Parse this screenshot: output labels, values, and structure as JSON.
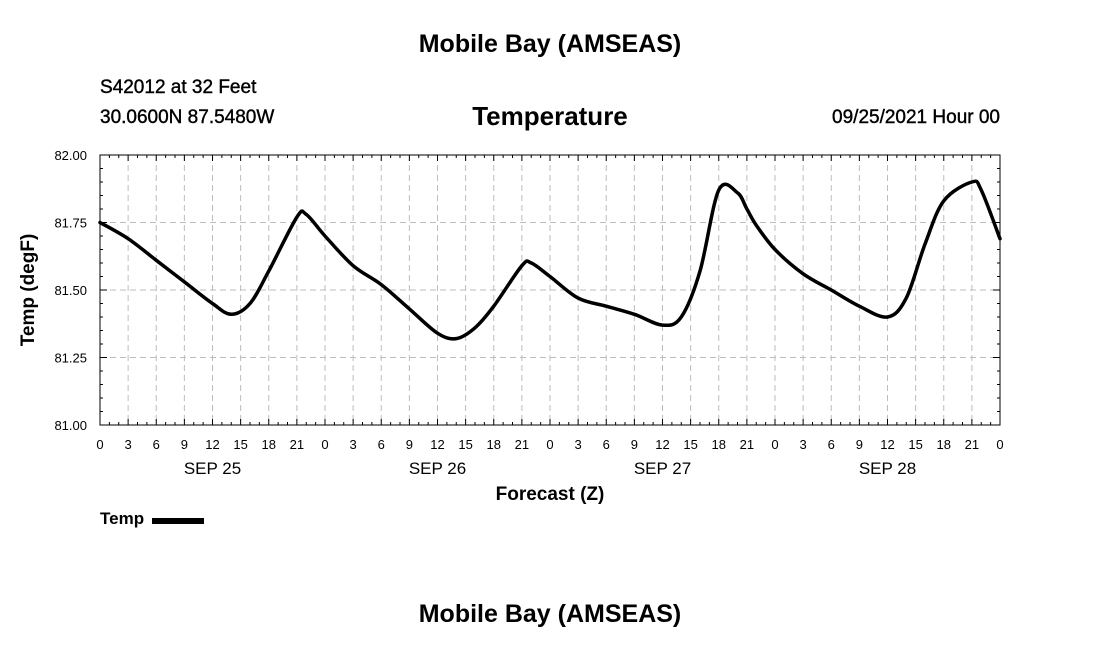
{
  "header": {
    "title": "Mobile Bay (AMSEAS)",
    "station": "S42012 at 32 Feet",
    "coords": "30.0600N  87.5480W",
    "variable": "Temperature",
    "datetime": "09/25/2021 Hour 00"
  },
  "footer": {
    "title": "Mobile Bay (AMSEAS)"
  },
  "legend": {
    "label": "Temp",
    "color": "#000000"
  },
  "chart_data": {
    "type": "line",
    "title": "Temperature",
    "xlabel": "Forecast (Z)",
    "ylabel": "Temp (degF)",
    "ylim": [
      81.0,
      82.0
    ],
    "yticks": [
      "81.00",
      "81.25",
      "81.50",
      "81.75",
      "82.00"
    ],
    "xlim": [
      0,
      96
    ],
    "xtick_hours": [
      0,
      3,
      6,
      9,
      12,
      15,
      18,
      21,
      24,
      27,
      30,
      33,
      36,
      39,
      42,
      45,
      48,
      51,
      54,
      57,
      60,
      63,
      66,
      69,
      72,
      75,
      78,
      81,
      84,
      87,
      90,
      93,
      96
    ],
    "xtick_labels": [
      "0",
      "3",
      "6",
      "9",
      "12",
      "15",
      "18",
      "21",
      "0",
      "3",
      "6",
      "9",
      "12",
      "15",
      "18",
      "21",
      "0",
      "3",
      "6",
      "9",
      "12",
      "15",
      "18",
      "21",
      "0",
      "3",
      "6",
      "9",
      "12",
      "15",
      "18",
      "21",
      "0"
    ],
    "day_labels": [
      {
        "label": "SEP 25",
        "hour": 12
      },
      {
        "label": "SEP 26",
        "hour": 36
      },
      {
        "label": "SEP 27",
        "hour": 60
      },
      {
        "label": "SEP 28",
        "hour": 84
      }
    ],
    "grid": true,
    "series": [
      {
        "name": "Temp",
        "color": "#000000",
        "x": [
          0,
          3,
          6,
          9,
          12,
          14,
          16,
          18,
          21,
          22,
          24,
          27,
          30,
          33,
          36,
          38,
          40,
          42,
          45,
          46,
          48,
          51,
          54,
          57,
          60,
          62,
          64,
          66,
          68,
          69,
          70,
          72,
          75,
          78,
          81,
          84,
          86,
          88,
          90,
          93,
          94,
          96
        ],
        "y": [
          81.75,
          81.69,
          81.61,
          81.53,
          81.45,
          81.41,
          81.45,
          81.57,
          81.77,
          81.78,
          81.7,
          81.59,
          81.52,
          81.43,
          81.34,
          81.32,
          81.36,
          81.44,
          81.59,
          81.6,
          81.55,
          81.47,
          81.44,
          81.41,
          81.37,
          81.4,
          81.57,
          81.87,
          81.86,
          81.8,
          81.74,
          81.65,
          81.56,
          81.5,
          81.44,
          81.4,
          81.47,
          81.67,
          81.83,
          81.9,
          81.87,
          81.69
        ]
      }
    ]
  }
}
